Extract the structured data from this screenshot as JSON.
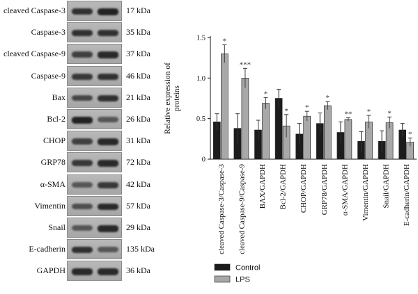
{
  "blots": [
    {
      "label": "cleaved Caspase-3",
      "size": "17 kDa",
      "control": 0.85,
      "lps": 0.95
    },
    {
      "label": "Caspase-3",
      "size": "35 kDa",
      "control": 0.85,
      "lps": 0.85
    },
    {
      "label": "cleaved Caspase-9",
      "size": "37 kDa",
      "control": 0.75,
      "lps": 0.9
    },
    {
      "label": "Caspase-9",
      "size": "46 kDa",
      "control": 0.8,
      "lps": 0.85
    },
    {
      "label": "Bax",
      "size": "21 kDa",
      "control": 0.7,
      "lps": 0.85
    },
    {
      "label": "Bcl-2",
      "size": "26 kDa",
      "control": 0.95,
      "lps": 0.6
    },
    {
      "label": "CHOP",
      "size": "31 kDa",
      "control": 0.75,
      "lps": 0.9
    },
    {
      "label": "GRP78",
      "size": "72 kDa",
      "control": 0.8,
      "lps": 0.9
    },
    {
      "label": "α-SMA",
      "size": "42 kDa",
      "control": 0.6,
      "lps": 0.8
    },
    {
      "label": "Vimentin",
      "size": "57 kDa",
      "control": 0.65,
      "lps": 0.9
    },
    {
      "label": "Snail",
      "size": "29 kDa",
      "control": 0.6,
      "lps": 0.9
    },
    {
      "label": "E-cadherin",
      "size": "135 kDa",
      "control": 0.85,
      "lps": 0.6
    },
    {
      "label": "GAPDH",
      "size": "36 kDa",
      "control": 0.9,
      "lps": 0.9
    }
  ],
  "chart_data": {
    "type": "bar",
    "ylabel": "Relative expression of proteins",
    "ylim": [
      0,
      1.5
    ],
    "yticks": [
      0,
      0.5,
      1.0,
      1.5
    ],
    "ytick_labels": [
      "0",
      "0.5",
      "1.0",
      "1.5"
    ],
    "categories": [
      "cleaved Caspase-3/Caspase-3",
      "cleaved Caspase-9/Caspase-9",
      "BAX/GAPDH",
      "Bcl-2/GAPDH",
      "CHOP/GAPDH",
      "GRP78/GAPDH",
      "α-SMA/GAPDH",
      "Vimentin/GAPDH",
      "Snail/GAPDH",
      "E-cadherin/GAPDH"
    ],
    "series": [
      {
        "name": "Control",
        "color": "#1c1c1c",
        "values": [
          0.46,
          0.38,
          0.36,
          0.75,
          0.31,
          0.44,
          0.33,
          0.22,
          0.22,
          0.36
        ],
        "errors": [
          0.1,
          0.18,
          0.12,
          0.11,
          0.13,
          0.13,
          0.13,
          0.12,
          0.13,
          0.08
        ]
      },
      {
        "name": "LPS",
        "color": "#a8a8a8",
        "values": [
          1.3,
          1.0,
          0.69,
          0.41,
          0.53,
          0.66,
          0.49,
          0.46,
          0.45,
          0.21
        ],
        "errors": [
          0.11,
          0.12,
          0.07,
          0.14,
          0.06,
          0.05,
          0.02,
          0.08,
          0.07,
          0.05
        ]
      }
    ],
    "significance": [
      "*",
      "***",
      "*",
      "*",
      "*",
      "*",
      "**",
      "*",
      "*",
      "*"
    ],
    "legend_position": "bottom-left"
  }
}
